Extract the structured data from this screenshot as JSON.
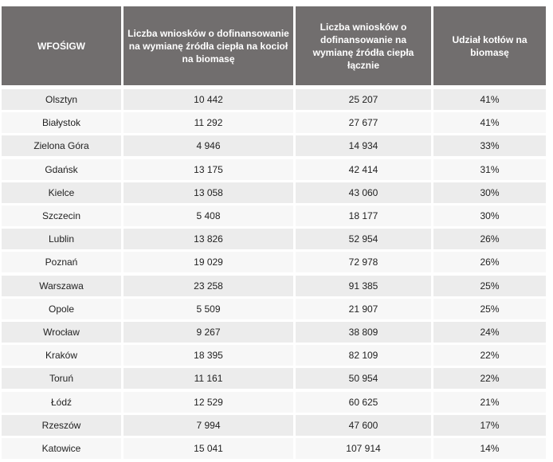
{
  "table": {
    "headers": [
      "WFOŚIGW",
      "Liczba wniosków o dofinansowanie na wymianę źródła ciepła na kocioł na biomasę",
      "Liczba wniosków o dofinansowanie na wymianę źródła ciepła łącznie",
      "Udział kotłów na biomasę"
    ],
    "rows": [
      [
        "Olsztyn",
        "10 442",
        "25 207",
        "41%"
      ],
      [
        "Białystok",
        "11 292",
        "27 677",
        "41%"
      ],
      [
        "Zielona Góra",
        "4 946",
        "14 934",
        "33%"
      ],
      [
        "Gdańsk",
        "13 175",
        "42 414",
        "31%"
      ],
      [
        "Kielce",
        "13 058",
        "43 060",
        "30%"
      ],
      [
        "Szczecin",
        "5 408",
        "18 177",
        "30%"
      ],
      [
        "Lublin",
        "13 826",
        "52 954",
        "26%"
      ],
      [
        "Poznań",
        "19 029",
        "72 978",
        "26%"
      ],
      [
        "Warszawa",
        "23 258",
        "91 385",
        "25%"
      ],
      [
        "Opole",
        "5 509",
        "21 907",
        "25%"
      ],
      [
        "Wrocław",
        "9 267",
        "38 809",
        "24%"
      ],
      [
        "Kraków",
        "18 395",
        "82 109",
        "22%"
      ],
      [
        "Toruń",
        "11 161",
        "50 954",
        "22%"
      ],
      [
        "Łódź",
        "12 529",
        "60 625",
        "21%"
      ],
      [
        "Rzeszów",
        "7 994",
        "47 600",
        "17%"
      ],
      [
        "Katowice",
        "15 041",
        "107 914",
        "14%"
      ]
    ]
  }
}
